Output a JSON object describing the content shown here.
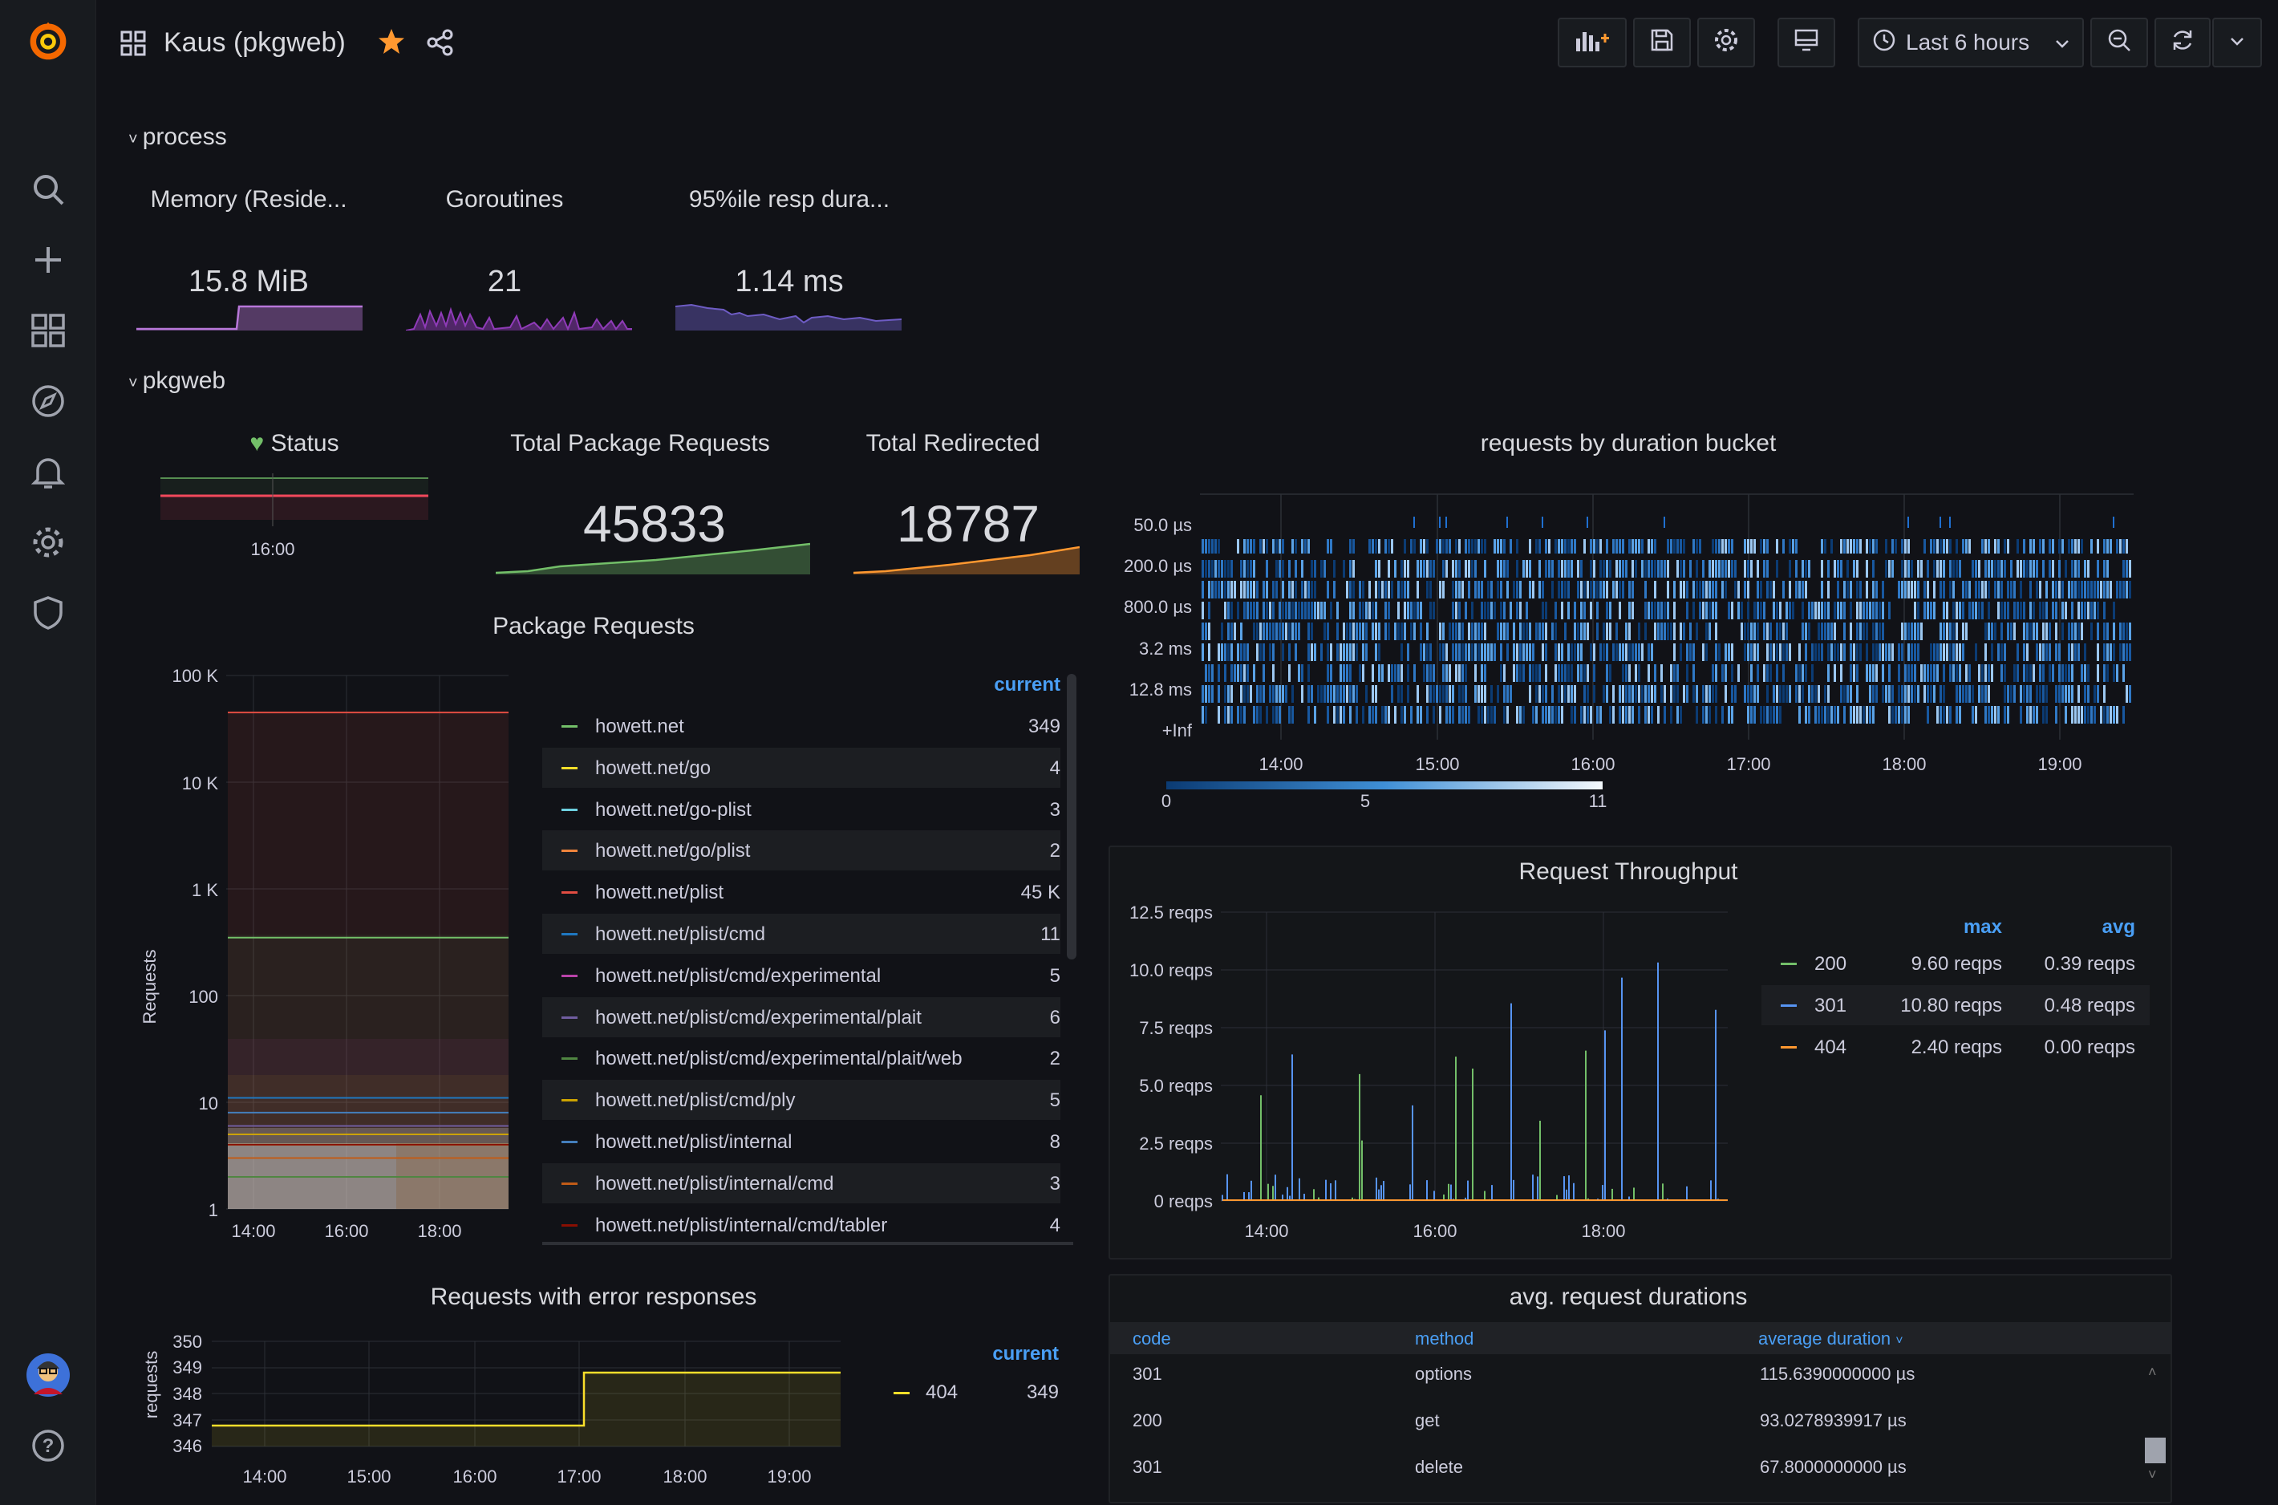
{
  "app": {
    "dashboard_title": "Kaus (pkgweb)",
    "time_range": "Last 6 hours"
  },
  "colors": {
    "accent": "#4a9ff5",
    "green": "#73bf69",
    "orange": "#ff9830",
    "red": "#f2495c",
    "purple": "#b877d9",
    "yellow": "#fade2a",
    "bg": "#111217"
  },
  "rows": {
    "process": "process",
    "pkgweb": "pkgweb"
  },
  "stats": {
    "memory": {
      "title": "Memory (Reside...",
      "value": "15.8 MiB"
    },
    "goroutines": {
      "title": "Goroutines",
      "value": "21"
    },
    "resp": {
      "title": "95%ile resp dura...",
      "value": "1.14 ms"
    },
    "status": {
      "title": "Status",
      "tick": "16:00"
    },
    "total_requests": {
      "title": "Total Package Requests",
      "value": "45833"
    },
    "total_redirected": {
      "title": "Total Redirected",
      "value": "18787"
    }
  },
  "package_requests": {
    "title": "Package Requests",
    "ylabel": "Requests",
    "legend_header": "current",
    "legend": [
      {
        "name": "howett.net",
        "value": "349",
        "color": "#73bf69"
      },
      {
        "name": "howett.net/go",
        "value": "4",
        "color": "#fade2a"
      },
      {
        "name": "howett.net/go-plist",
        "value": "3",
        "color": "#6ed0e0"
      },
      {
        "name": "howett.net/go/plist",
        "value": "2",
        "color": "#ef843c"
      },
      {
        "name": "howett.net/plist",
        "value": "45 K",
        "color": "#e24d42"
      },
      {
        "name": "howett.net/plist/cmd",
        "value": "11",
        "color": "#1f78c1"
      },
      {
        "name": "howett.net/plist/cmd/experimental",
        "value": "5",
        "color": "#ba43a9"
      },
      {
        "name": "howett.net/plist/cmd/experimental/plait",
        "value": "6",
        "color": "#705da0"
      },
      {
        "name": "howett.net/plist/cmd/experimental/plait/web",
        "value": "2",
        "color": "#508642"
      },
      {
        "name": "howett.net/plist/cmd/ply",
        "value": "5",
        "color": "#cca300"
      },
      {
        "name": "howett.net/plist/internal",
        "value": "8",
        "color": "#447ebc"
      },
      {
        "name": "howett.net/plist/internal/cmd",
        "value": "3",
        "color": "#c15c17"
      },
      {
        "name": "howett.net/plist/internal/cmd/tabler",
        "value": "4",
        "color": "#890f02"
      }
    ]
  },
  "error_responses": {
    "title": "Requests with error responses",
    "ylabel": "requests",
    "legend_header": "current",
    "legend": [
      {
        "name": "404",
        "value": "349",
        "color": "#fade2a"
      }
    ]
  },
  "heatmap": {
    "title": "requests by duration bucket",
    "scale": {
      "min": "0",
      "mid": "5",
      "max": "11"
    }
  },
  "throughput": {
    "title": "Request Throughput",
    "legend_headers": {
      "max": "max",
      "avg": "avg"
    },
    "legend": [
      {
        "name": "200",
        "max": "9.60 reqps",
        "avg": "0.39 reqps",
        "color": "#73bf69"
      },
      {
        "name": "301",
        "max": "10.80 reqps",
        "avg": "0.48 reqps",
        "color": "#5794f2"
      },
      {
        "name": "404",
        "max": "2.40 reqps",
        "avg": "0.00 reqps",
        "color": "#ff9830"
      }
    ]
  },
  "durations": {
    "title": "avg. request durations",
    "columns": [
      "code",
      "method",
      "average duration"
    ],
    "rows": [
      [
        "301",
        "options",
        "115.6390000000 µs"
      ],
      [
        "200",
        "get",
        "93.0278939917 µs"
      ],
      [
        "301",
        "delete",
        "67.8000000000 µs"
      ]
    ]
  },
  "chart_data": [
    {
      "type": "line",
      "title": "Package Requests",
      "ylabel": "Requests",
      "yscale": "log",
      "ylim": [
        1,
        100000
      ],
      "x_ticks": [
        "14:00",
        "16:00",
        "18:00"
      ],
      "y_ticks": [
        "1",
        "10",
        "100",
        "1 K",
        "10 K",
        "100 K"
      ],
      "series": [
        {
          "name": "howett.net",
          "values": [
            349
          ]
        },
        {
          "name": "howett.net/go",
          "values": [
            4
          ]
        },
        {
          "name": "howett.net/go-plist",
          "values": [
            3
          ]
        },
        {
          "name": "howett.net/go/plist",
          "values": [
            2
          ]
        },
        {
          "name": "howett.net/plist",
          "values": [
            45000
          ]
        },
        {
          "name": "howett.net/plist/cmd",
          "values": [
            11
          ]
        },
        {
          "name": "howett.net/plist/cmd/experimental",
          "values": [
            5
          ]
        },
        {
          "name": "howett.net/plist/cmd/experimental/plait",
          "values": [
            6
          ]
        },
        {
          "name": "howett.net/plist/cmd/experimental/plait/web",
          "values": [
            2
          ]
        },
        {
          "name": "howett.net/plist/cmd/ply",
          "values": [
            5
          ]
        },
        {
          "name": "howett.net/plist/internal",
          "values": [
            8
          ]
        },
        {
          "name": "howett.net/plist/internal/cmd",
          "values": [
            3
          ]
        },
        {
          "name": "howett.net/plist/internal/cmd/tabler",
          "values": [
            4
          ]
        }
      ]
    },
    {
      "type": "line",
      "title": "Requests with error responses",
      "ylabel": "requests",
      "ylim": [
        346,
        350
      ],
      "y_ticks": [
        "346",
        "347",
        "348",
        "349",
        "350"
      ],
      "x_ticks": [
        "14:00",
        "15:00",
        "16:00",
        "17:00",
        "18:00",
        "19:00"
      ],
      "series": [
        {
          "name": "404",
          "x": [
            "13:30",
            "17:05",
            "17:05",
            "19:30"
          ],
          "values": [
            347,
            347,
            349,
            349
          ]
        }
      ]
    },
    {
      "type": "heatmap",
      "title": "requests by duration bucket",
      "y_ticks": [
        "50.0 µs",
        "200.0 µs",
        "800.0 µs",
        "3.2 ms",
        "12.8 ms",
        "+Inf"
      ],
      "x_ticks": [
        "14:00",
        "15:00",
        "16:00",
        "17:00",
        "18:00",
        "19:00"
      ],
      "color_range": [
        0,
        11
      ]
    },
    {
      "type": "bar",
      "title": "Request Throughput",
      "ylim": [
        0,
        12.5
      ],
      "y_ticks": [
        "0 reqps",
        "2.5 reqps",
        "5.0 reqps",
        "7.5 reqps",
        "10.0 reqps",
        "12.5 reqps"
      ],
      "x_ticks": [
        "14:00",
        "16:00",
        "18:00"
      ],
      "series": [
        {
          "name": "200",
          "max": 9.6,
          "avg": 0.39
        },
        {
          "name": "301",
          "max": 10.8,
          "avg": 0.48
        },
        {
          "name": "404",
          "max": 2.4,
          "avg": 0.0
        }
      ]
    }
  ]
}
